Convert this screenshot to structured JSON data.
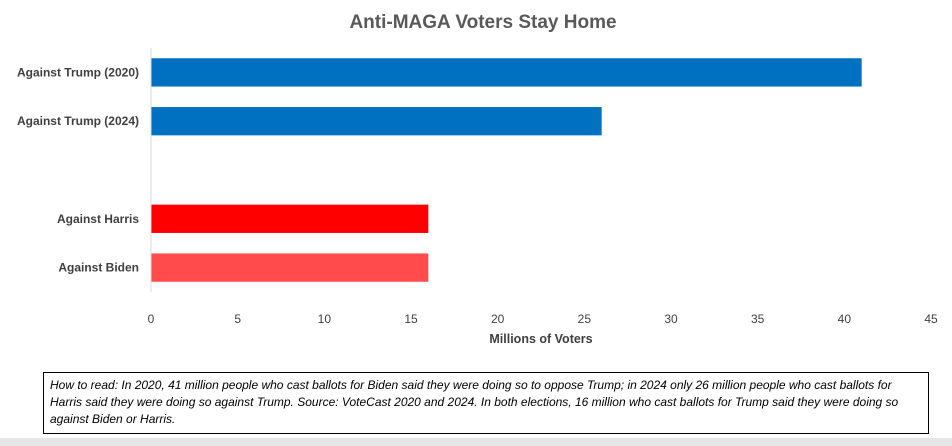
{
  "chart_data": {
    "type": "bar",
    "orientation": "horizontal",
    "title": "Anti-MAGA Voters Stay Home",
    "xlabel": "Millions of Voters",
    "ylabel": "",
    "xlim": [
      0,
      45
    ],
    "xticks": [
      0,
      5,
      10,
      15,
      20,
      25,
      30,
      35,
      40,
      45
    ],
    "grid": false,
    "legend": "none",
    "categories": [
      "Against Trump (2020)",
      "Against Trump (2024)",
      "",
      "Against Harris",
      "Against Biden"
    ],
    "values": [
      41,
      26,
      null,
      16,
      16
    ],
    "colors": [
      "#0070c0",
      "#0070c0",
      null,
      "#ff0000",
      "#ff4b4b"
    ]
  },
  "note": {
    "text": "How to read: In 2020, 41 million people who cast ballots for Biden said they were doing so to oppose Trump; in 2024 only 26 million people who cast ballots for Harris said they were doing so against Trump. Source: VoteCast 2020 and 2024.  In both elections, 16 million who cast ballots for Trump said they were doing so against Biden or Harris."
  }
}
